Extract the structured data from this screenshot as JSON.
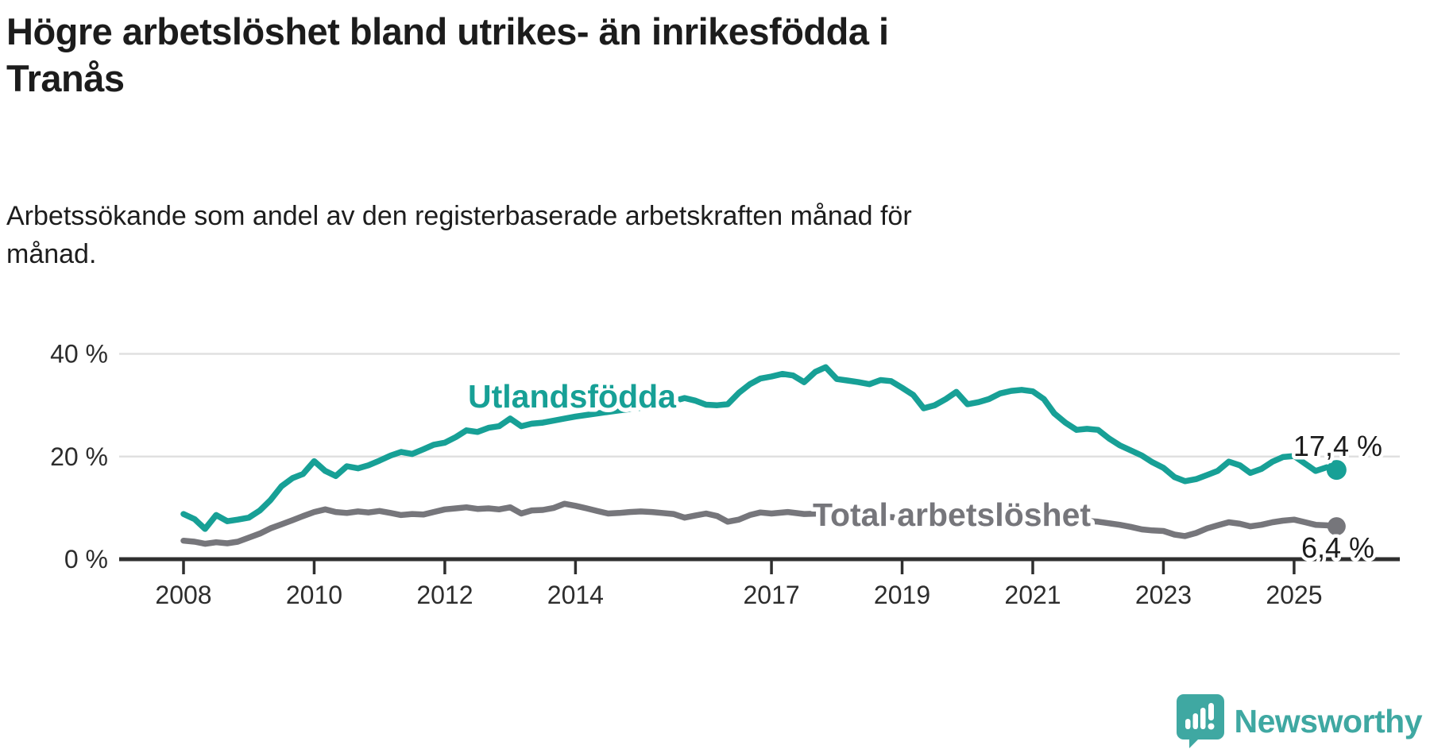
{
  "header": {
    "title_lines": [
      "Högre arbetslöshet bland utrikes- än inrikesfödda i",
      "Tranås"
    ],
    "subtitle_lines": [
      "Arbetssökande som andel av den registerbaserade arbetskraften månad för",
      "månad."
    ]
  },
  "colors": {
    "utlandsfodda": "#17a096",
    "total": "#76767b",
    "gridline": "#e0e0e0",
    "axis": "#2f2f2f",
    "tick_label": "#2d2d2d",
    "end_label": "#1c1c1c",
    "logo": "#3fa8a2"
  },
  "chart_data": {
    "type": "line",
    "title": "Högre arbetslöshet bland utrikes- än inrikesfödda i Tranås",
    "subtitle": "Arbetssökande som andel av den registerbaserade arbetskraften månad för månad.",
    "xlabel": "",
    "ylabel": "",
    "grid": "horizontal",
    "xlim": [
      2008,
      2026.3
    ],
    "ylim": [
      0,
      44
    ],
    "x_ticks": [
      2008,
      2010,
      2012,
      2014,
      2017,
      2019,
      2021,
      2023,
      2025
    ],
    "x_tick_labels": [
      "2008",
      "2010",
      "2012",
      "2014",
      "2017",
      "2019",
      "2021",
      "2023",
      "2025"
    ],
    "y_ticks": [
      0,
      20,
      40
    ],
    "y_tick_labels": [
      "0 %",
      "20 %",
      "40 %"
    ],
    "series": [
      {
        "name": "Utlandsfödda",
        "end_label": "17,4 %",
        "end_value": 17.4,
        "color": "#17a096",
        "points": [
          [
            2008.0,
            8.8
          ],
          [
            2008.17,
            7.8
          ],
          [
            2008.33,
            5.9
          ],
          [
            2008.5,
            8.6
          ],
          [
            2008.67,
            7.4
          ],
          [
            2008.83,
            7.7
          ],
          [
            2009.0,
            8.1
          ],
          [
            2009.17,
            9.5
          ],
          [
            2009.33,
            11.5
          ],
          [
            2009.5,
            14.2
          ],
          [
            2009.67,
            15.8
          ],
          [
            2009.83,
            16.6
          ],
          [
            2010.0,
            19.1
          ],
          [
            2010.17,
            17.2
          ],
          [
            2010.33,
            16.2
          ],
          [
            2010.5,
            18.1
          ],
          [
            2010.67,
            17.7
          ],
          [
            2010.83,
            18.3
          ],
          [
            2011.0,
            19.2
          ],
          [
            2011.17,
            20.2
          ],
          [
            2011.33,
            20.9
          ],
          [
            2011.5,
            20.5
          ],
          [
            2011.67,
            21.4
          ],
          [
            2011.83,
            22.3
          ],
          [
            2012.0,
            22.7
          ],
          [
            2012.17,
            23.8
          ],
          [
            2012.33,
            25.1
          ],
          [
            2012.5,
            24.8
          ],
          [
            2012.67,
            25.6
          ],
          [
            2012.83,
            25.9
          ],
          [
            2013.0,
            27.4
          ],
          [
            2013.17,
            25.9
          ],
          [
            2013.33,
            26.4
          ],
          [
            2013.5,
            26.6
          ],
          [
            2013.67,
            27.0
          ],
          [
            2013.83,
            27.4
          ],
          [
            2014.0,
            27.8
          ],
          [
            2014.33,
            28.4
          ],
          [
            2014.67,
            29.0
          ],
          [
            2015.0,
            29.5
          ],
          [
            2015.33,
            30.2
          ],
          [
            2015.67,
            31.4
          ],
          [
            2015.83,
            30.9
          ],
          [
            2016.0,
            30.1
          ],
          [
            2016.17,
            30.0
          ],
          [
            2016.33,
            30.2
          ],
          [
            2016.5,
            32.4
          ],
          [
            2016.67,
            34.1
          ],
          [
            2016.83,
            35.2
          ],
          [
            2017.0,
            35.6
          ],
          [
            2017.17,
            36.1
          ],
          [
            2017.33,
            35.8
          ],
          [
            2017.5,
            34.5
          ],
          [
            2017.67,
            36.5
          ],
          [
            2017.83,
            37.4
          ],
          [
            2018.0,
            35.1
          ],
          [
            2018.17,
            34.8
          ],
          [
            2018.33,
            34.5
          ],
          [
            2018.5,
            34.1
          ],
          [
            2018.67,
            34.9
          ],
          [
            2018.83,
            34.7
          ],
          [
            2019.0,
            33.4
          ],
          [
            2019.17,
            32.0
          ],
          [
            2019.33,
            29.4
          ],
          [
            2019.5,
            30.0
          ],
          [
            2019.67,
            31.2
          ],
          [
            2019.83,
            32.6
          ],
          [
            2020.0,
            30.2
          ],
          [
            2020.17,
            30.6
          ],
          [
            2020.33,
            31.2
          ],
          [
            2020.5,
            32.3
          ],
          [
            2020.67,
            32.8
          ],
          [
            2020.83,
            33.0
          ],
          [
            2021.0,
            32.7
          ],
          [
            2021.17,
            31.2
          ],
          [
            2021.33,
            28.4
          ],
          [
            2021.5,
            26.6
          ],
          [
            2021.67,
            25.2
          ],
          [
            2021.83,
            25.4
          ],
          [
            2022.0,
            25.2
          ],
          [
            2022.17,
            23.5
          ],
          [
            2022.33,
            22.2
          ],
          [
            2022.5,
            21.2
          ],
          [
            2022.67,
            20.2
          ],
          [
            2022.83,
            18.9
          ],
          [
            2023.0,
            17.8
          ],
          [
            2023.17,
            16.0
          ],
          [
            2023.33,
            15.2
          ],
          [
            2023.5,
            15.6
          ],
          [
            2023.67,
            16.4
          ],
          [
            2023.83,
            17.2
          ],
          [
            2024.0,
            19.0
          ],
          [
            2024.17,
            18.3
          ],
          [
            2024.33,
            16.8
          ],
          [
            2024.5,
            17.6
          ],
          [
            2024.67,
            19.0
          ],
          [
            2024.83,
            19.9
          ],
          [
            2025.0,
            20.1
          ],
          [
            2025.17,
            18.6
          ],
          [
            2025.33,
            17.2
          ],
          [
            2025.5,
            17.9
          ],
          [
            2025.65,
            17.4
          ]
        ]
      },
      {
        "name": "Total arbetslöshet",
        "end_label": "6,4 %",
        "end_value": 6.4,
        "color": "#76767b",
        "points": [
          [
            2008.0,
            3.6
          ],
          [
            2008.17,
            3.4
          ],
          [
            2008.33,
            3.0
          ],
          [
            2008.5,
            3.3
          ],
          [
            2008.67,
            3.1
          ],
          [
            2008.83,
            3.4
          ],
          [
            2009.0,
            4.2
          ],
          [
            2009.17,
            5.0
          ],
          [
            2009.33,
            6.0
          ],
          [
            2009.5,
            6.8
          ],
          [
            2009.67,
            7.6
          ],
          [
            2009.83,
            8.4
          ],
          [
            2010.0,
            9.2
          ],
          [
            2010.17,
            9.7
          ],
          [
            2010.33,
            9.2
          ],
          [
            2010.5,
            9.0
          ],
          [
            2010.67,
            9.3
          ],
          [
            2010.83,
            9.1
          ],
          [
            2011.0,
            9.4
          ],
          [
            2011.17,
            9.0
          ],
          [
            2011.33,
            8.6
          ],
          [
            2011.5,
            8.8
          ],
          [
            2011.67,
            8.7
          ],
          [
            2011.83,
            9.2
          ],
          [
            2012.0,
            9.7
          ],
          [
            2012.17,
            9.9
          ],
          [
            2012.33,
            10.1
          ],
          [
            2012.5,
            9.8
          ],
          [
            2012.67,
            9.9
          ],
          [
            2012.83,
            9.7
          ],
          [
            2013.0,
            10.1
          ],
          [
            2013.17,
            8.9
          ],
          [
            2013.33,
            9.5
          ],
          [
            2013.5,
            9.6
          ],
          [
            2013.67,
            10.0
          ],
          [
            2013.83,
            10.8
          ],
          [
            2014.0,
            10.4
          ],
          [
            2014.17,
            9.9
          ],
          [
            2014.33,
            9.4
          ],
          [
            2014.5,
            8.9
          ],
          [
            2014.67,
            9.0
          ],
          [
            2014.83,
            9.2
          ],
          [
            2015.0,
            9.3
          ],
          [
            2015.17,
            9.2
          ],
          [
            2015.33,
            9.0
          ],
          [
            2015.5,
            8.8
          ],
          [
            2015.67,
            8.1
          ],
          [
            2015.83,
            8.5
          ],
          [
            2016.0,
            8.9
          ],
          [
            2016.17,
            8.4
          ],
          [
            2016.33,
            7.3
          ],
          [
            2016.5,
            7.7
          ],
          [
            2016.67,
            8.6
          ],
          [
            2016.83,
            9.1
          ],
          [
            2017.0,
            8.9
          ],
          [
            2017.25,
            9.2
          ],
          [
            2017.5,
            8.8
          ],
          [
            2017.75,
            8.9
          ],
          [
            2018.0,
            8.6
          ],
          [
            2018.33,
            8.4
          ],
          [
            2018.67,
            8.3
          ],
          [
            2019.0,
            8.1
          ],
          [
            2019.33,
            7.9
          ],
          [
            2019.67,
            8.0
          ],
          [
            2020.0,
            8.3
          ],
          [
            2020.33,
            8.6
          ],
          [
            2020.67,
            8.4
          ],
          [
            2021.0,
            8.2
          ],
          [
            2021.33,
            7.9
          ],
          [
            2021.67,
            7.6
          ],
          [
            2022.0,
            7.3
          ],
          [
            2022.17,
            7.0
          ],
          [
            2022.33,
            6.7
          ],
          [
            2022.5,
            6.3
          ],
          [
            2022.67,
            5.8
          ],
          [
            2022.83,
            5.6
          ],
          [
            2023.0,
            5.5
          ],
          [
            2023.17,
            4.8
          ],
          [
            2023.33,
            4.5
          ],
          [
            2023.5,
            5.1
          ],
          [
            2023.67,
            6.0
          ],
          [
            2023.83,
            6.6
          ],
          [
            2024.0,
            7.2
          ],
          [
            2024.17,
            6.9
          ],
          [
            2024.33,
            6.4
          ],
          [
            2024.5,
            6.7
          ],
          [
            2024.67,
            7.2
          ],
          [
            2024.83,
            7.5
          ],
          [
            2025.0,
            7.7
          ],
          [
            2025.17,
            7.2
          ],
          [
            2025.33,
            6.7
          ],
          [
            2025.5,
            6.6
          ],
          [
            2025.65,
            6.4
          ]
        ]
      }
    ],
    "legend_position": "inline-labels"
  },
  "logo": {
    "text": "Newsworthy",
    "icon": "newsworthy-speech-bubble-chart-icon"
  }
}
